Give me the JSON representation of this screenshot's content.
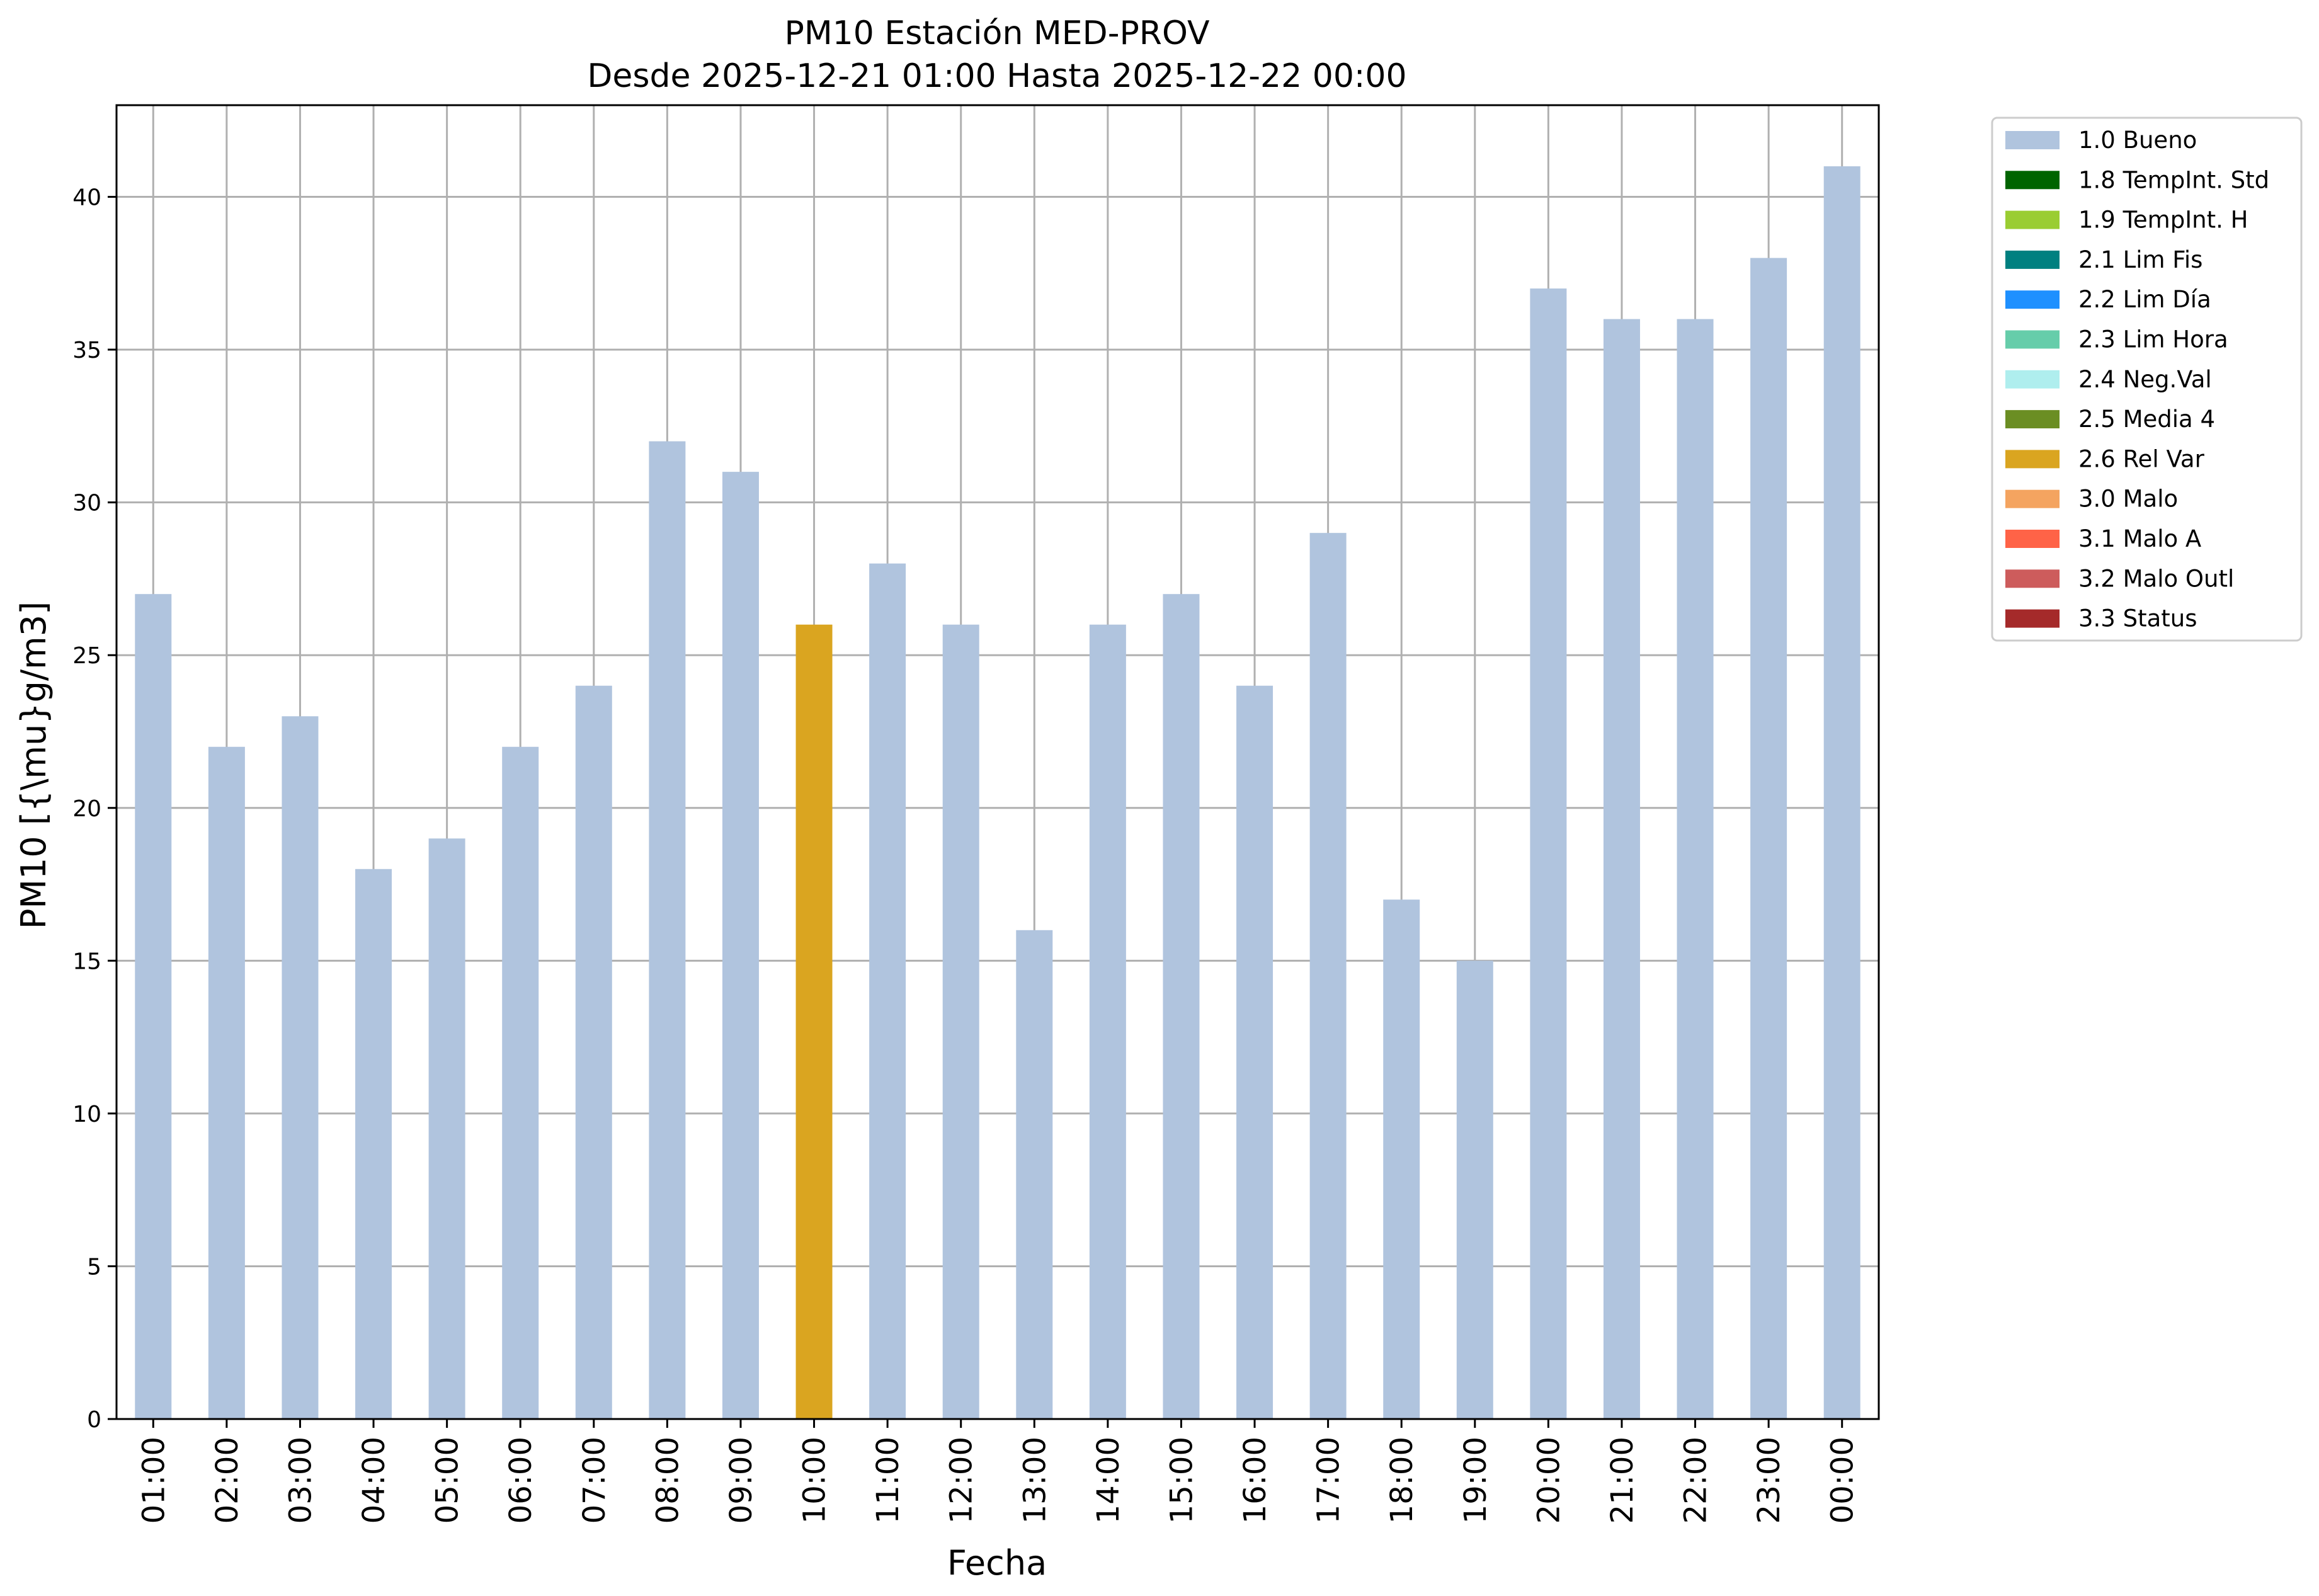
{
  "chart_data": {
    "type": "bar",
    "title_line1": "PM10 Estación MED-PROV",
    "title_line2": "Desde 2025-12-21 01:00 Hasta 2025-12-22 00:00",
    "xlabel": "Fecha",
    "ylabel": "PM10 [{\\mu}g/m3]",
    "ylim": [
      0,
      43
    ],
    "yticks": [
      0,
      5,
      10,
      15,
      20,
      25,
      30,
      35,
      40
    ],
    "grid": true,
    "legend_placement": "outside-top-right",
    "categories": [
      "01:00",
      "02:00",
      "03:00",
      "04:00",
      "05:00",
      "06:00",
      "07:00",
      "08:00",
      "09:00",
      "10:00",
      "11:00",
      "12:00",
      "13:00",
      "14:00",
      "15:00",
      "16:00",
      "17:00",
      "18:00",
      "19:00",
      "20:00",
      "21:00",
      "22:00",
      "23:00",
      "00:00"
    ],
    "values": [
      27,
      22,
      23,
      18,
      19,
      22,
      24,
      32,
      31,
      26,
      28,
      26,
      16,
      26,
      27,
      24,
      29,
      17,
      15,
      37,
      36,
      36,
      38,
      41
    ],
    "flags": [
      "1.0 Bueno",
      "1.0 Bueno",
      "1.0 Bueno",
      "1.0 Bueno",
      "1.0 Bueno",
      "1.0 Bueno",
      "1.0 Bueno",
      "1.0 Bueno",
      "1.0 Bueno",
      "2.6 Rel Var",
      "1.0 Bueno",
      "1.0 Bueno",
      "1.0 Bueno",
      "1.0 Bueno",
      "1.0 Bueno",
      "1.0 Bueno",
      "1.0 Bueno",
      "1.0 Bueno",
      "1.0 Bueno",
      "1.0 Bueno",
      "1.0 Bueno",
      "1.0 Bueno",
      "1.0 Bueno",
      "1.0 Bueno"
    ],
    "legend": [
      {
        "label": "1.0 Bueno",
        "color": "#b0c4de"
      },
      {
        "label": "1.8 TempInt. Std",
        "color": "#006400"
      },
      {
        "label": "1.9 TempInt. H",
        "color": "#9acd32"
      },
      {
        "label": "2.1 Lim Fis",
        "color": "#008080"
      },
      {
        "label": "2.2 Lim Día",
        "color": "#1e90ff"
      },
      {
        "label": "2.3 Lim Hora",
        "color": "#66cdaa"
      },
      {
        "label": "2.4 Neg.Val",
        "color": "#afeeee"
      },
      {
        "label": "2.5 Media 4",
        "color": "#6b8e23"
      },
      {
        "label": "2.6 Rel Var",
        "color": "#daa520"
      },
      {
        "label": "3.0 Malo",
        "color": "#f4a460"
      },
      {
        "label": "3.1 Malo A",
        "color": "#ff6347"
      },
      {
        "label": "3.2 Malo Outl",
        "color": "#cd5c5c"
      },
      {
        "label": "3.3 Status",
        "color": "#a52a2a"
      }
    ]
  }
}
